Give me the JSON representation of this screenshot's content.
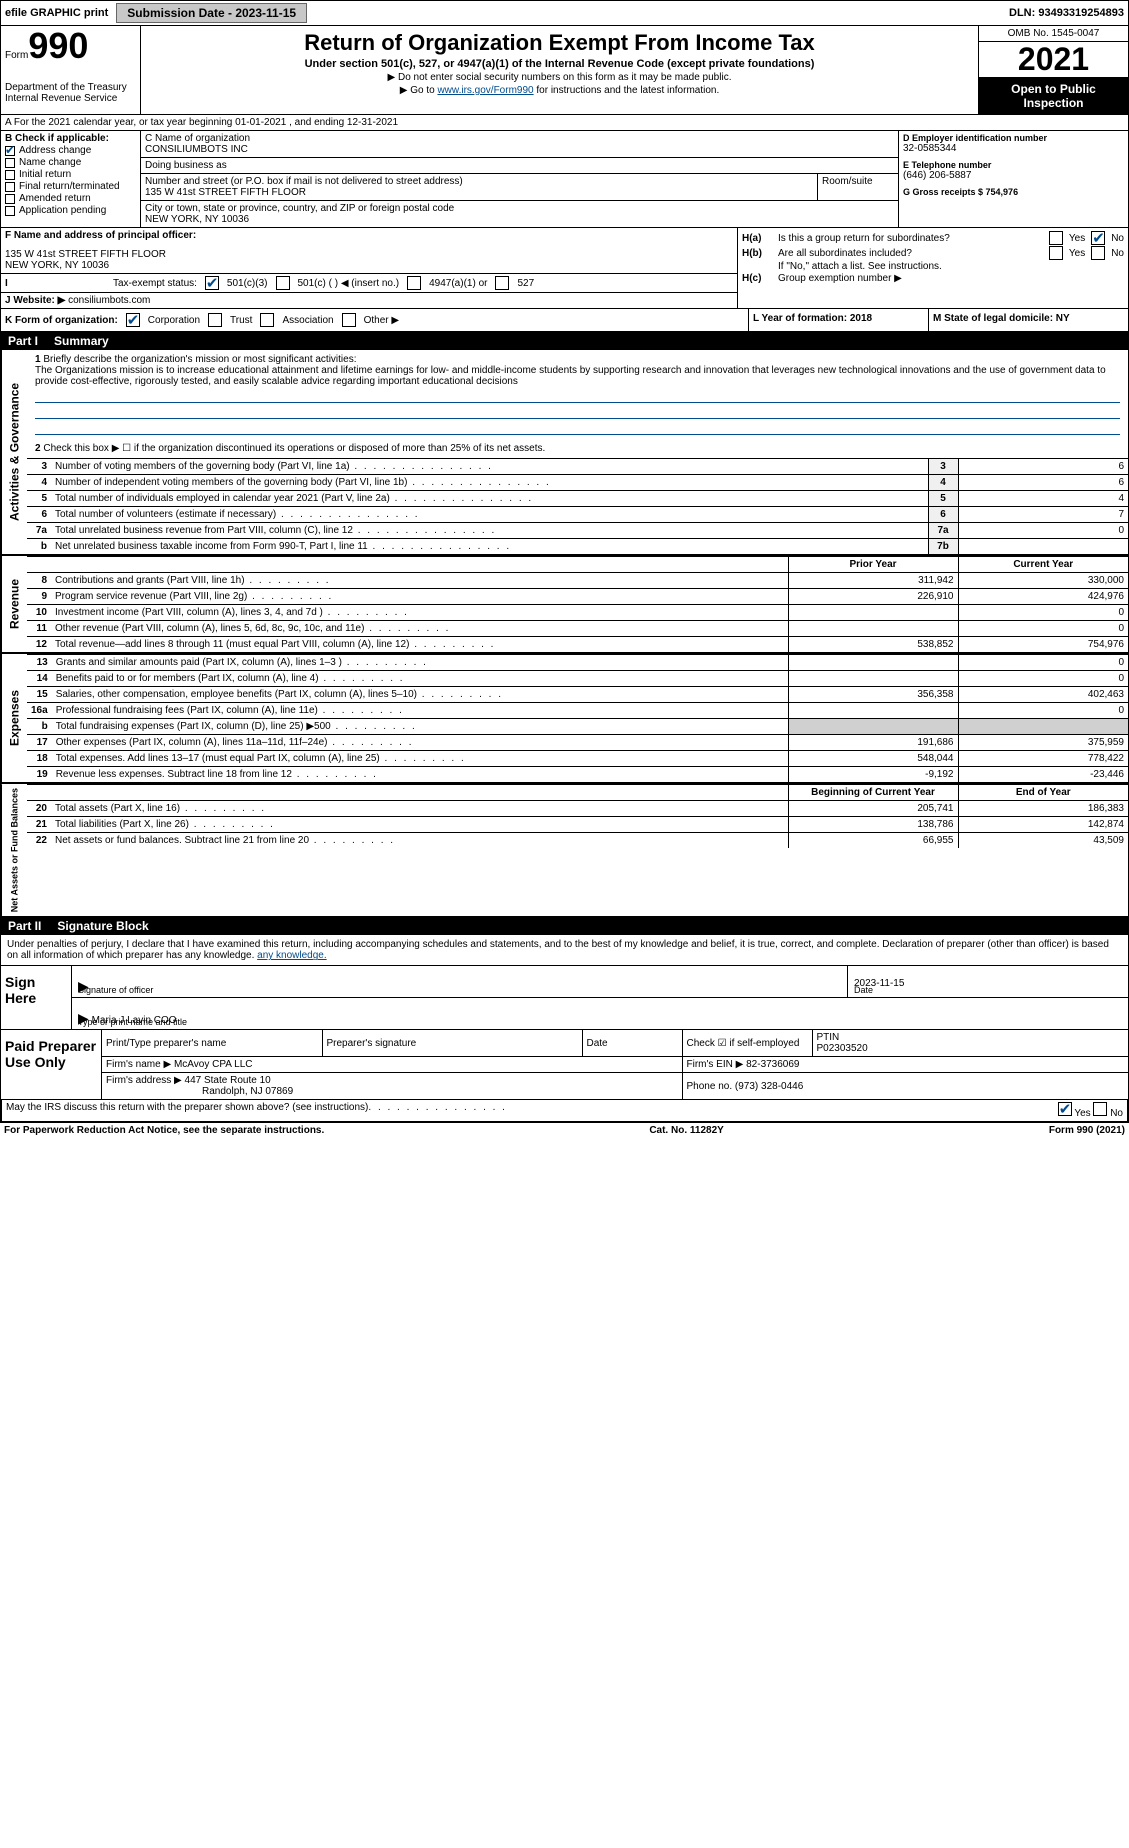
{
  "topbar": {
    "efile": "efile GRAPHIC print",
    "submission_label": "Submission Date - 2023-11-15",
    "dln": "DLN: 93493319254893"
  },
  "header": {
    "form_word": "Form",
    "form_number": "990",
    "dept": "Department of the Treasury",
    "irs": "Internal Revenue Service",
    "title": "Return of Organization Exempt From Income Tax",
    "subtitle": "Under section 501(c), 527, or 4947(a)(1) of the Internal Revenue Code (except private foundations)",
    "instr1": "▶ Do not enter social security numbers on this form as it may be made public.",
    "instr2_pre": "▶ Go to ",
    "instr2_link": "www.irs.gov/Form990",
    "instr2_post": " for instructions and the latest information.",
    "omb": "OMB No. 1545-0047",
    "year": "2021",
    "open": "Open to Public Inspection"
  },
  "row_a": "A For the 2021 calendar year, or tax year beginning 01-01-2021    , and ending 12-31-2021",
  "section_b": {
    "label": "B Check if applicable:",
    "address_change": "Address change",
    "name_change": "Name change",
    "initial_return": "Initial return",
    "final_return": "Final return/terminated",
    "amended_return": "Amended return",
    "app_pending": "Application pending"
  },
  "section_c": {
    "name_label": "C Name of organization",
    "name": "CONSILIUMBOTS INC",
    "dba_label": "Doing business as",
    "dba": "",
    "street_label": "Number and street (or P.O. box if mail is not delivered to street address)",
    "street": "135 W 41st STREET FIFTH FLOOR",
    "room_label": "Room/suite",
    "city_label": "City or town, state or province, country, and ZIP or foreign postal code",
    "city": "NEW YORK, NY  10036"
  },
  "section_d": {
    "ein_label": "D Employer identification number",
    "ein": "32-0585344",
    "phone_label": "E Telephone number",
    "phone": "(646) 206-5887",
    "gross_label": "G Gross receipts $ 754,976"
  },
  "section_f": {
    "label": "F  Name and address of principal officer:",
    "line1": "135 W 41st STREET FIFTH FLOOR",
    "line2": "NEW YORK, NY  10036"
  },
  "section_h": {
    "ha": "Is this a group return for subordinates?",
    "hb": "Are all subordinates included?",
    "hb_note": "If \"No,\" attach a list. See instructions.",
    "hc": "Group exemption number ▶"
  },
  "tax_status": {
    "label": "Tax-exempt status:",
    "c3": "501(c)(3)",
    "c": "501(c) (  ) ◀ (insert no.)",
    "a1": "4947(a)(1) or",
    "s527": "527"
  },
  "website": {
    "label": "Website: ▶",
    "value": "consiliumbots.com"
  },
  "section_k": {
    "label": "K Form of organization:",
    "corp": "Corporation",
    "trust": "Trust",
    "assoc": "Association",
    "other": "Other ▶"
  },
  "section_l": {
    "label": "L Year of formation: 2018"
  },
  "section_m": {
    "label": "M State of legal domicile: NY"
  },
  "part1": {
    "title": "Part I",
    "name": "Summary",
    "line1_label": "Briefly describe the organization's mission or most significant activities:",
    "mission": "The Organizations mission is to increase educational attainment and lifetime earnings for low- and middle-income students by supporting research and innovation that leverages new technological innovations and the use of government data to provide cost-effective, rigorously tested, and easily scalable advice regarding important educational decisions",
    "line2": "Check this box ▶ ☐  if the organization discontinued its operations or disposed of more than 25% of its net assets.",
    "rows_gov": [
      {
        "n": "3",
        "label": "Number of voting members of the governing body (Part VI, line 1a)",
        "cell": "3",
        "val": "6"
      },
      {
        "n": "4",
        "label": "Number of independent voting members of the governing body (Part VI, line 1b)",
        "cell": "4",
        "val": "6"
      },
      {
        "n": "5",
        "label": "Total number of individuals employed in calendar year 2021 (Part V, line 2a)",
        "cell": "5",
        "val": "4"
      },
      {
        "n": "6",
        "label": "Total number of volunteers (estimate if necessary)",
        "cell": "6",
        "val": "7"
      },
      {
        "n": "7a",
        "label": "Total unrelated business revenue from Part VIII, column (C), line 12",
        "cell": "7a",
        "val": "0"
      },
      {
        "n": "b",
        "label": "Net unrelated business taxable income from Form 990-T, Part I, line 11",
        "cell": "7b",
        "val": ""
      }
    ],
    "col_headers": {
      "prior": "Prior Year",
      "current": "Current Year"
    },
    "rows_rev": [
      {
        "n": "8",
        "label": "Contributions and grants (Part VIII, line 1h)",
        "prior": "311,942",
        "current": "330,000"
      },
      {
        "n": "9",
        "label": "Program service revenue (Part VIII, line 2g)",
        "prior": "226,910",
        "current": "424,976"
      },
      {
        "n": "10",
        "label": "Investment income (Part VIII, column (A), lines 3, 4, and 7d )",
        "prior": "",
        "current": "0"
      },
      {
        "n": "11",
        "label": "Other revenue (Part VIII, column (A), lines 5, 6d, 8c, 9c, 10c, and 11e)",
        "prior": "",
        "current": "0"
      },
      {
        "n": "12",
        "label": "Total revenue—add lines 8 through 11 (must equal Part VIII, column (A), line 12)",
        "prior": "538,852",
        "current": "754,976"
      }
    ],
    "rows_exp": [
      {
        "n": "13",
        "label": "Grants and similar amounts paid (Part IX, column (A), lines 1–3 )",
        "prior": "",
        "current": "0"
      },
      {
        "n": "14",
        "label": "Benefits paid to or for members (Part IX, column (A), line 4)",
        "prior": "",
        "current": "0"
      },
      {
        "n": "15",
        "label": "Salaries, other compensation, employee benefits (Part IX, column (A), lines 5–10)",
        "prior": "356,358",
        "current": "402,463"
      },
      {
        "n": "16a",
        "label": "Professional fundraising fees (Part IX, column (A), line 11e)",
        "prior": "",
        "current": "0"
      },
      {
        "n": "b",
        "label": "Total fundraising expenses (Part IX, column (D), line 25) ▶500",
        "prior": "grey",
        "current": "grey"
      },
      {
        "n": "17",
        "label": "Other expenses (Part IX, column (A), lines 11a–11d, 11f–24e)",
        "prior": "191,686",
        "current": "375,959"
      },
      {
        "n": "18",
        "label": "Total expenses. Add lines 13–17 (must equal Part IX, column (A), line 25)",
        "prior": "548,044",
        "current": "778,422"
      },
      {
        "n": "19",
        "label": "Revenue less expenses. Subtract line 18 from line 12",
        "prior": "-9,192",
        "current": "-23,446"
      }
    ],
    "col_headers2": {
      "begin": "Beginning of Current Year",
      "end": "End of Year"
    },
    "rows_net": [
      {
        "n": "20",
        "label": "Total assets (Part X, line 16)",
        "prior": "205,741",
        "current": "186,383"
      },
      {
        "n": "21",
        "label": "Total liabilities (Part X, line 26)",
        "prior": "138,786",
        "current": "142,874"
      },
      {
        "n": "22",
        "label": "Net assets or fund balances. Subtract line 21 from line 20",
        "prior": "66,955",
        "current": "43,509"
      }
    ],
    "side_gov": "Activities & Governance",
    "side_rev": "Revenue",
    "side_exp": "Expenses",
    "side_net": "Net Assets or Fund Balances"
  },
  "part2": {
    "title": "Part II",
    "name": "Signature Block",
    "declaration": "Under penalties of perjury, I declare that I have examined this return, including accompanying schedules and statements, and to the best of my knowledge and belief, it is true, correct, and complete. Declaration of preparer (other than officer) is based on all information of which preparer has any knowledge.",
    "sign_here": "Sign Here",
    "sig_officer": "Signature of officer",
    "sig_date": "2023-11-15",
    "date_label": "Date",
    "type_name": "Maria J Lavin COO",
    "type_label": "Type or print name and title",
    "paid": "Paid Preparer Use Only",
    "prep_name_label": "Print/Type preparer's name",
    "prep_sig_label": "Preparer's signature",
    "prep_date_label": "Date",
    "self_emp": "Check ☑ if self-employed",
    "ptin_label": "PTIN",
    "ptin": "P02303520",
    "firm_name_label": "Firm's name    ▶",
    "firm_name": "McAvoy CPA LLC",
    "firm_ein_label": "Firm's EIN ▶",
    "firm_ein": "82-3736069",
    "firm_addr_label": "Firm's address ▶",
    "firm_addr1": "447 State Route 10",
    "firm_addr2": "Randolph, NJ  07869",
    "firm_phone_label": "Phone no.",
    "firm_phone": "(973) 328-0446",
    "discuss": "May the IRS discuss this return with the preparer shown above? (see instructions)",
    "yes": "Yes",
    "no": "No"
  },
  "footer": {
    "pra": "For Paperwork Reduction Act Notice, see the separate instructions.",
    "cat": "Cat. No. 11282Y",
    "form": "Form 990 (2021)"
  }
}
